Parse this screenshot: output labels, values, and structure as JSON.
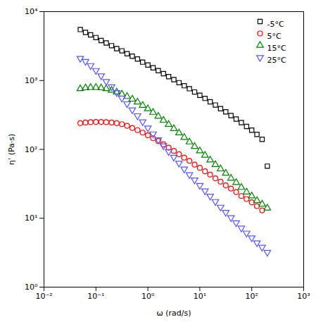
{
  "chart_data": {
    "type": "scatter",
    "xlabel": "ω (rad/s)",
    "ylabel": "η’ (Pa·s)",
    "log": true,
    "xlim": [
      0.01,
      1000
    ],
    "ylim": [
      1,
      10000
    ],
    "xticks": [
      {
        "value": 0.01,
        "label": "10⁻²"
      },
      {
        "value": 0.1,
        "label": "10⁻¹"
      },
      {
        "value": 1,
        "label": "10⁰"
      },
      {
        "value": 10,
        "label": "10¹"
      },
      {
        "value": 100,
        "label": "10²"
      },
      {
        "value": 1000,
        "label": "10³"
      }
    ],
    "yticks": [
      {
        "value": 1,
        "label": "10⁰"
      },
      {
        "value": 10,
        "label": "10¹"
      },
      {
        "value": 100,
        "label": "10²"
      },
      {
        "value": 1000,
        "label": "10³"
      },
      {
        "value": 10000,
        "label": "10⁴"
      }
    ],
    "legend": "upper right",
    "series": [
      {
        "name": "-5°C",
        "color": "black",
        "marker": "square",
        "x": [
          0.05,
          0.063,
          0.079,
          0.1,
          0.126,
          0.158,
          0.2,
          0.251,
          0.316,
          0.398,
          0.501,
          0.631,
          0.794,
          1.0,
          1.259,
          1.585,
          1.995,
          2.512,
          3.162,
          3.981,
          5.012,
          6.31,
          7.943,
          10.0,
          12.59,
          15.85,
          19.95,
          25.12,
          31.62,
          39.81,
          50.12,
          63.1,
          79.43,
          100.0,
          125.9,
          158.5,
          199.5
        ],
        "values": [
          5500,
          5000,
          4600,
          4200,
          3800,
          3500,
          3200,
          2900,
          2700,
          2450,
          2250,
          2050,
          1850,
          1680,
          1530,
          1390,
          1260,
          1140,
          1030,
          930,
          840,
          760,
          680,
          610,
          550,
          490,
          440,
          390,
          350,
          310,
          275,
          245,
          215,
          190,
          165,
          140,
          57
        ]
      },
      {
        "name": "5°C",
        "color": "red",
        "marker": "circle",
        "x": [
          0.05,
          0.063,
          0.079,
          0.1,
          0.126,
          0.158,
          0.2,
          0.251,
          0.316,
          0.398,
          0.501,
          0.631,
          0.794,
          1.0,
          1.259,
          1.585,
          1.995,
          2.512,
          3.162,
          3.981,
          5.012,
          6.31,
          7.943,
          10.0,
          12.59,
          15.85,
          19.95,
          25.12,
          31.62,
          39.81,
          50.12,
          63.1,
          79.43,
          100.0,
          125.9,
          158.5
        ],
        "values": [
          240,
          245,
          248,
          250,
          250,
          248,
          245,
          240,
          232,
          220,
          205,
          190,
          175,
          160,
          145,
          132,
          118,
          106,
          95,
          85,
          76,
          68,
          60,
          54,
          48,
          43,
          38,
          34,
          30,
          27,
          24,
          21,
          19,
          17,
          15,
          13
        ]
      },
      {
        "name": "15°C",
        "color": "green",
        "marker": "triangle-up",
        "x": [
          0.05,
          0.063,
          0.079,
          0.1,
          0.126,
          0.158,
          0.2,
          0.251,
          0.316,
          0.398,
          0.501,
          0.631,
          0.794,
          1.0,
          1.259,
          1.585,
          1.995,
          2.512,
          3.162,
          3.981,
          5.012,
          6.31,
          7.943,
          10.0,
          12.59,
          15.85,
          19.95,
          25.12,
          31.62,
          39.81,
          50.12,
          63.1,
          79.43,
          100.0,
          125.9,
          158.5,
          199.5
        ],
        "values": [
          760,
          780,
          790,
          790,
          780,
          760,
          720,
          680,
          635,
          585,
          535,
          485,
          435,
          388,
          344,
          302,
          264,
          230,
          200,
          173,
          149,
          128,
          110,
          95,
          82,
          70,
          60,
          52,
          45,
          38,
          33,
          28,
          24,
          21,
          18,
          16,
          14
        ]
      },
      {
        "name": "25°C",
        "color": "#5555ff",
        "marker": "triangle-down",
        "x": [
          0.05,
          0.063,
          0.079,
          0.1,
          0.126,
          0.158,
          0.2,
          0.251,
          0.316,
          0.398,
          0.501,
          0.631,
          0.794,
          1.0,
          1.259,
          1.585,
          1.995,
          2.512,
          3.162,
          3.981,
          5.012,
          6.31,
          7.943,
          10.0,
          12.59,
          15.85,
          19.95,
          25.12,
          31.62,
          39.81,
          50.12,
          63.1,
          79.43,
          100.0,
          125.9,
          158.5,
          199.5
        ],
        "values": [
          2100,
          1900,
          1650,
          1400,
          1170,
          970,
          810,
          670,
          555,
          460,
          375,
          308,
          252,
          205,
          168,
          138,
          113,
          93,
          77,
          63,
          52,
          43,
          36,
          30,
          25,
          21,
          17.5,
          14.5,
          12.2,
          10.2,
          8.6,
          7.2,
          6.1,
          5.2,
          4.4,
          3.8,
          3.2
        ]
      }
    ]
  }
}
